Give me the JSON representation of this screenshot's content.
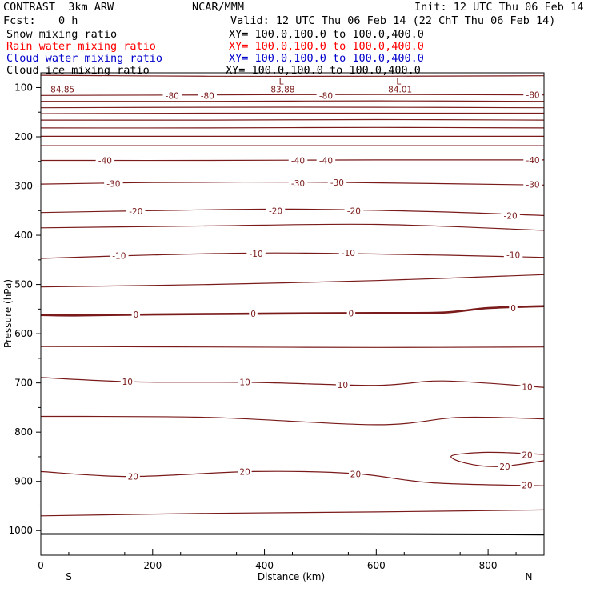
{
  "header": {
    "model": "CONTRAST  3km ARW",
    "org": "NCAR/MMM",
    "init": "Init: 12 UTC Thu 06 Feb 14",
    "fcst_label": "Fcst:",
    "fcst_value": "0 h",
    "valid": "Valid: 12 UTC Thu 06 Feb 14 (22 ChT Thu 06 Feb 14)"
  },
  "legend": [
    {
      "name": "Snow mixing ratio",
      "xy": "XY= 100.0,100.0 to 100.0,400.0",
      "color": "#000000"
    },
    {
      "name": "Rain water mixing ratio",
      "xy": "XY= 100.0,100.0 to 100.0,400.0",
      "color": "#ff0000"
    },
    {
      "name": "Cloud water mixing ratio",
      "xy": "XY= 100.0,100.0 to 100.0,400.0",
      "color": "#0000cc"
    },
    {
      "name": "Cloud ice mixing ratio",
      "xy": "XY= 100.0,100.0 to 100.0,400.0",
      "color": "#000000"
    }
  ],
  "chart_data": {
    "type": "line",
    "xlabel": "Distance (km)",
    "ylabel": "Pressure (hPa)",
    "xlim": [
      0,
      900
    ],
    "ylim": [
      1050,
      70
    ],
    "x_ticks": [
      "0",
      "200",
      "400",
      "600",
      "800"
    ],
    "y_ticks": [
      "100",
      "200",
      "300",
      "400",
      "500",
      "600",
      "700",
      "800",
      "900",
      "1000"
    ],
    "x_tick_values": [
      0,
      200,
      400,
      600,
      800
    ],
    "y_tick_values": [
      100,
      200,
      300,
      400,
      500,
      600,
      700,
      800,
      900,
      1000
    ],
    "direction_left": "S",
    "direction_right": "N",
    "line_color": "#7a1a1a",
    "contours": [
      {
        "level": "",
        "points": [
          [
            0,
            75
          ],
          [
            300,
            77
          ],
          [
            600,
            77
          ],
          [
            900,
            76
          ]
        ]
      },
      {
        "level": "-80",
        "points": [
          [
            0,
            116
          ],
          [
            300,
            115
          ],
          [
            600,
            114
          ],
          [
            900,
            115
          ]
        ]
      },
      {
        "level": "",
        "points": [
          [
            0,
            128
          ],
          [
            300,
            128
          ],
          [
            600,
            127
          ],
          [
            900,
            128
          ]
        ]
      },
      {
        "level": "",
        "points": [
          [
            0,
            141
          ],
          [
            300,
            140
          ],
          [
            600,
            140
          ],
          [
            900,
            141
          ]
        ]
      },
      {
        "level": "",
        "points": [
          [
            0,
            153
          ],
          [
            300,
            152
          ],
          [
            600,
            152
          ],
          [
            900,
            152
          ]
        ]
      },
      {
        "level": "",
        "points": [
          [
            0,
            166
          ],
          [
            300,
            166
          ],
          [
            600,
            165
          ],
          [
            900,
            166
          ]
        ]
      },
      {
        "level": "",
        "points": [
          [
            0,
            182
          ],
          [
            300,
            182
          ],
          [
            600,
            181
          ],
          [
            900,
            182
          ]
        ]
      },
      {
        "level": "",
        "points": [
          [
            0,
            199
          ],
          [
            300,
            199
          ],
          [
            600,
            199
          ],
          [
            900,
            199
          ]
        ]
      },
      {
        "level": "",
        "points": [
          [
            0,
            218
          ],
          [
            300,
            218
          ],
          [
            600,
            218
          ],
          [
            900,
            218
          ]
        ]
      },
      {
        "level": "-40",
        "points": [
          [
            0,
            248
          ],
          [
            300,
            248
          ],
          [
            600,
            247
          ],
          [
            900,
            247
          ]
        ]
      },
      {
        "level": "-30",
        "points": [
          [
            0,
            296
          ],
          [
            200,
            293
          ],
          [
            450,
            292
          ],
          [
            700,
            295
          ],
          [
            900,
            298
          ]
        ]
      },
      {
        "level": "-20",
        "points": [
          [
            0,
            354
          ],
          [
            200,
            350
          ],
          [
            450,
            347
          ],
          [
            700,
            352
          ],
          [
            900,
            360
          ]
        ]
      },
      {
        "level": "",
        "points": [
          [
            0,
            385
          ],
          [
            300,
            381
          ],
          [
            600,
            378
          ],
          [
            900,
            390
          ]
        ]
      },
      {
        "level": "-10",
        "points": [
          [
            0,
            447
          ],
          [
            200,
            440
          ],
          [
            420,
            436
          ],
          [
            700,
            440
          ],
          [
            900,
            445
          ]
        ]
      },
      {
        "level": "",
        "points": [
          [
            0,
            505
          ],
          [
            300,
            500
          ],
          [
            600,
            492
          ],
          [
            900,
            480
          ]
        ]
      },
      {
        "level": "0",
        "points": [
          [
            0,
            562
          ],
          [
            60,
            563
          ],
          [
            200,
            561
          ],
          [
            420,
            559
          ],
          [
            600,
            558
          ],
          [
            720,
            557
          ],
          [
            800,
            548
          ],
          [
            900,
            544
          ]
        ],
        "bold": true
      },
      {
        "level": "",
        "points": [
          [
            0,
            626
          ],
          [
            300,
            627
          ],
          [
            600,
            628
          ],
          [
            900,
            627
          ]
        ]
      },
      {
        "level": "10",
        "points": [
          [
            0,
            689
          ],
          [
            170,
            698
          ],
          [
            380,
            699
          ],
          [
            600,
            705
          ],
          [
            720,
            696
          ],
          [
            900,
            709
          ]
        ]
      },
      {
        "level": "",
        "points": [
          [
            0,
            768
          ],
          [
            300,
            770
          ],
          [
            600,
            785
          ],
          [
            750,
            770
          ],
          [
            900,
            773
          ]
        ]
      },
      {
        "level": "20",
        "points": [
          [
            0,
            880
          ],
          [
            160,
            890
          ],
          [
            380,
            880
          ],
          [
            560,
            884
          ],
          [
            700,
            903
          ],
          [
            900,
            909
          ]
        ]
      },
      {
        "level": "20",
        "points": [
          [
            900,
            845
          ],
          [
            800,
            841
          ],
          [
            735,
            848
          ],
          [
            760,
            863
          ],
          [
            820,
            870
          ],
          [
            900,
            858
          ]
        ]
      },
      {
        "level": "",
        "points": [
          [
            0,
            970
          ],
          [
            300,
            965
          ],
          [
            600,
            962
          ],
          [
            900,
            958
          ]
        ]
      }
    ],
    "surface": {
      "points": [
        [
          0,
          1007
        ],
        [
          300,
          1007
        ],
        [
          560,
          1007
        ],
        [
          900,
          1008
        ]
      ]
    },
    "contour_labels": [
      {
        "text": "-80",
        "x": 235,
        "p": 116
      },
      {
        "text": "-80",
        "x": 298,
        "p": 116
      },
      {
        "text": "-80",
        "x": 510,
        "p": 116
      },
      {
        "text": "-80",
        "x": 880,
        "p": 115
      },
      {
        "text": "-40",
        "x": 115,
        "p": 248
      },
      {
        "text": "-40",
        "x": 460,
        "p": 248
      },
      {
        "text": "-40",
        "x": 510,
        "p": 248
      },
      {
        "text": "-40",
        "x": 880,
        "p": 247
      },
      {
        "text": "-30",
        "x": 130,
        "p": 295
      },
      {
        "text": "-30",
        "x": 460,
        "p": 294
      },
      {
        "text": "-30",
        "x": 530,
        "p": 293
      },
      {
        "text": "-30",
        "x": 880,
        "p": 297
      },
      {
        "text": "-20",
        "x": 170,
        "p": 351
      },
      {
        "text": "-20",
        "x": 420,
        "p": 350
      },
      {
        "text": "-20",
        "x": 560,
        "p": 350
      },
      {
        "text": "-20",
        "x": 840,
        "p": 360
      },
      {
        "text": "-10",
        "x": 140,
        "p": 441
      },
      {
        "text": "-10",
        "x": 385,
        "p": 437
      },
      {
        "text": "-10",
        "x": 550,
        "p": 436
      },
      {
        "text": "-10",
        "x": 845,
        "p": 440
      },
      {
        "text": "0",
        "x": 170,
        "p": 561
      },
      {
        "text": "0",
        "x": 380,
        "p": 559
      },
      {
        "text": "0",
        "x": 555,
        "p": 558
      },
      {
        "text": "0",
        "x": 845,
        "p": 548
      },
      {
        "text": "10",
        "x": 155,
        "p": 697
      },
      {
        "text": "10",
        "x": 365,
        "p": 698
      },
      {
        "text": "10",
        "x": 540,
        "p": 704
      },
      {
        "text": "10",
        "x": 870,
        "p": 708
      },
      {
        "text": "20",
        "x": 165,
        "p": 890
      },
      {
        "text": "20",
        "x": 365,
        "p": 880
      },
      {
        "text": "20",
        "x": 563,
        "p": 885
      },
      {
        "text": "20",
        "x": 830,
        "p": 870
      },
      {
        "text": "20",
        "x": 870,
        "p": 846
      },
      {
        "text": "20",
        "x": 870,
        "p": 908
      }
    ],
    "annotations": [
      {
        "text": "L",
        "x": 430,
        "p": 87
      },
      {
        "text": "-83.88",
        "x": 430,
        "p": 103
      },
      {
        "text": "L",
        "x": 640,
        "p": 87
      },
      {
        "text": "-84.01",
        "x": 640,
        "p": 103
      },
      {
        "text": "-84.85",
        "x": 12,
        "p": 103
      }
    ]
  }
}
